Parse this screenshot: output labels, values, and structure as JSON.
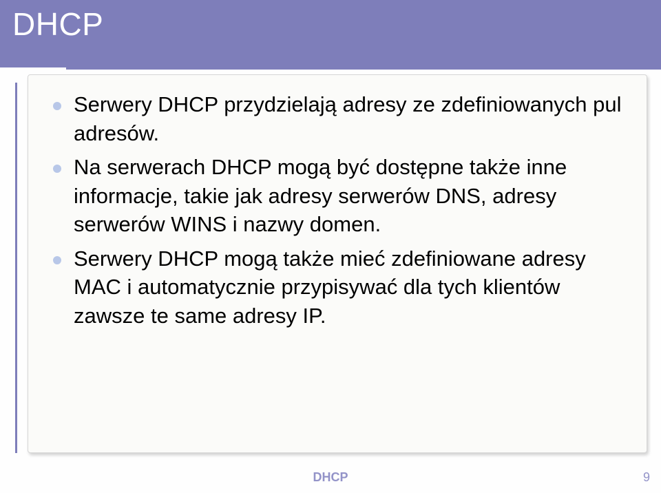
{
  "colors": {
    "accent": "#7e7eba",
    "bullet": "#b8c7e8",
    "body_text": "#000000",
    "footer_text": "#9393c8",
    "content_bg": "#fbfbf9",
    "content_border": "#d6d6d6",
    "page_bg": "#fefefe",
    "title_text": "#ffffff"
  },
  "typography": {
    "title_fontsize": 46,
    "body_fontsize": 31,
    "footer_fontsize": 18
  },
  "slide": {
    "title": "DHCP",
    "bullets": [
      "Serwery DHCP przydzielają adresy ze zdefiniowanych pul adresów.",
      "Na serwerach DHCP mogą być dostępne także inne informacje, takie jak adresy serwerów DNS, adresy serwerów WINS i nazwy domen.",
      "Serwery DHCP mogą także mieć zdefiniowane adresy MAC i automatycznie przypisywać dla tych klientów zawsze te same adresy IP."
    ]
  },
  "footer": {
    "label": "DHCP",
    "page": "9"
  }
}
